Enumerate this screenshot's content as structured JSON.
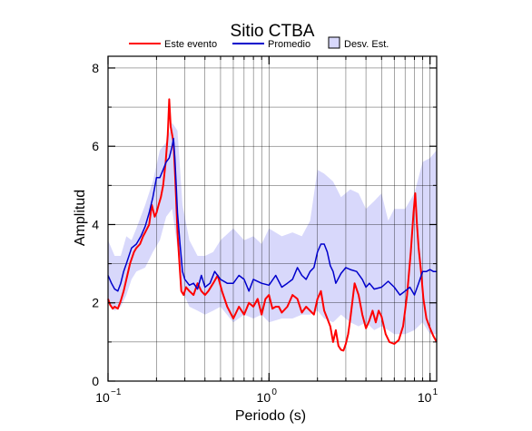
{
  "chart_data": {
    "type": "line",
    "title": "Sitio CTBA",
    "xlabel": "Periodo (s)",
    "ylabel": "Amplitud",
    "x_scale": "log",
    "xlim": [
      0.1,
      11
    ],
    "ylim": [
      0,
      8.3
    ],
    "grid": true,
    "legend_position": "top",
    "x_ticks": [
      {
        "value": 0.1,
        "base": "10",
        "exp": "−1"
      },
      {
        "value": 1,
        "base": "10",
        "exp": "0"
      },
      {
        "value": 10,
        "base": "10",
        "exp": "1"
      }
    ],
    "y_ticks": [
      0,
      2,
      4,
      6,
      8
    ],
    "legend": [
      {
        "label": "Este evento",
        "kind": "line",
        "color": "#ff0000"
      },
      {
        "label": "Promedio",
        "kind": "line",
        "color": "#0000cc"
      },
      {
        "label": "Desv. Est.",
        "kind": "band",
        "color": "#d8d8fb"
      }
    ],
    "series": [
      {
        "name": "Este evento",
        "color": "#ff0000",
        "x": [
          0.1,
          0.103,
          0.107,
          0.11,
          0.115,
          0.12,
          0.125,
          0.13,
          0.137,
          0.145,
          0.15,
          0.158,
          0.165,
          0.17,
          0.175,
          0.18,
          0.187,
          0.195,
          0.2,
          0.206,
          0.213,
          0.22,
          0.228,
          0.235,
          0.24,
          0.245,
          0.25,
          0.255,
          0.26,
          0.265,
          0.27,
          0.278,
          0.285,
          0.295,
          0.305,
          0.32,
          0.34,
          0.36,
          0.38,
          0.4,
          0.42,
          0.45,
          0.48,
          0.51,
          0.55,
          0.6,
          0.65,
          0.7,
          0.75,
          0.8,
          0.85,
          0.9,
          0.95,
          1.0,
          1.05,
          1.1,
          1.15,
          1.2,
          1.3,
          1.4,
          1.5,
          1.6,
          1.7,
          1.8,
          1.9,
          2.0,
          2.1,
          2.2,
          2.3,
          2.4,
          2.5,
          2.6,
          2.7,
          2.8,
          2.9,
          3.0,
          3.1,
          3.2,
          3.4,
          3.6,
          3.8,
          4.0,
          4.2,
          4.4,
          4.6,
          4.8,
          5.0,
          5.3,
          5.6,
          6.0,
          6.4,
          6.8,
          7.2,
          7.6,
          7.9,
          8.1,
          8.3,
          8.5,
          8.8,
          9.1,
          9.5,
          10.0,
          10.5,
          11.0
        ],
        "values": [
          2.1,
          1.95,
          1.85,
          1.9,
          1.85,
          2.05,
          2.3,
          2.6,
          3.0,
          3.3,
          3.4,
          3.5,
          3.7,
          3.8,
          3.9,
          4.0,
          4.5,
          4.2,
          4.3,
          4.5,
          4.7,
          5.0,
          5.6,
          6.3,
          7.2,
          6.5,
          6.3,
          6.1,
          5.4,
          4.6,
          3.8,
          3.0,
          2.3,
          2.2,
          2.4,
          2.3,
          2.2,
          2.5,
          2.3,
          2.2,
          2.3,
          2.5,
          2.7,
          2.3,
          1.9,
          1.6,
          1.9,
          1.7,
          2.0,
          1.9,
          2.1,
          1.7,
          2.1,
          2.2,
          1.85,
          1.9,
          1.9,
          1.75,
          1.9,
          2.2,
          2.1,
          1.75,
          1.9,
          1.8,
          1.7,
          2.1,
          2.3,
          1.8,
          1.6,
          1.4,
          1.0,
          1.3,
          0.9,
          0.8,
          0.78,
          0.95,
          1.2,
          1.6,
          2.5,
          2.2,
          1.7,
          1.35,
          1.55,
          1.8,
          1.5,
          1.8,
          1.65,
          1.2,
          1.0,
          0.95,
          1.05,
          1.4,
          2.2,
          3.3,
          4.3,
          4.8,
          4.0,
          3.4,
          2.8,
          2.1,
          1.6,
          1.35,
          1.15,
          1.0
        ]
      },
      {
        "name": "Promedio",
        "color": "#0000cc",
        "x": [
          0.1,
          0.105,
          0.11,
          0.115,
          0.12,
          0.125,
          0.13,
          0.14,
          0.15,
          0.16,
          0.17,
          0.18,
          0.19,
          0.2,
          0.21,
          0.22,
          0.23,
          0.24,
          0.25,
          0.255,
          0.26,
          0.265,
          0.27,
          0.28,
          0.29,
          0.3,
          0.32,
          0.34,
          0.36,
          0.38,
          0.4,
          0.43,
          0.46,
          0.5,
          0.55,
          0.6,
          0.65,
          0.7,
          0.75,
          0.8,
          0.9,
          1.0,
          1.1,
          1.2,
          1.3,
          1.4,
          1.5,
          1.6,
          1.7,
          1.8,
          1.9,
          2.0,
          2.1,
          2.2,
          2.3,
          2.4,
          2.5,
          2.6,
          2.8,
          3.0,
          3.2,
          3.5,
          3.8,
          4.0,
          4.2,
          4.5,
          5.0,
          5.5,
          6.0,
          6.5,
          7.0,
          7.5,
          8.0,
          8.5,
          9.0,
          9.5,
          10.0,
          10.5,
          11.0
        ],
        "values": [
          2.7,
          2.5,
          2.35,
          2.3,
          2.5,
          2.8,
          3.0,
          3.4,
          3.5,
          3.7,
          3.95,
          4.3,
          4.7,
          5.2,
          5.2,
          5.4,
          5.6,
          5.7,
          6.0,
          6.2,
          5.7,
          5.0,
          4.3,
          3.5,
          2.8,
          2.6,
          2.45,
          2.5,
          2.35,
          2.7,
          2.4,
          2.5,
          2.8,
          2.6,
          2.5,
          2.5,
          2.7,
          2.6,
          2.3,
          2.6,
          2.5,
          2.45,
          2.7,
          2.4,
          2.5,
          2.6,
          2.9,
          2.7,
          2.6,
          2.8,
          2.9,
          3.3,
          3.5,
          3.5,
          3.3,
          2.95,
          2.8,
          2.5,
          2.75,
          2.9,
          2.85,
          2.8,
          2.6,
          2.4,
          2.5,
          2.35,
          2.4,
          2.55,
          2.4,
          2.2,
          2.3,
          2.4,
          2.2,
          2.5,
          2.8,
          2.8,
          2.85,
          2.8,
          2.8
        ]
      }
    ],
    "band": {
      "name": "Desv. Est.",
      "color": "#d8d8fb",
      "x": [
        0.1,
        0.11,
        0.12,
        0.13,
        0.14,
        0.15,
        0.17,
        0.19,
        0.21,
        0.23,
        0.25,
        0.27,
        0.29,
        0.32,
        0.36,
        0.4,
        0.45,
        0.5,
        0.6,
        0.7,
        0.8,
        0.9,
        1.0,
        1.2,
        1.4,
        1.6,
        1.8,
        2.0,
        2.2,
        2.5,
        2.8,
        3.2,
        3.6,
        4.0,
        4.5,
        5.0,
        5.5,
        6.0,
        7.0,
        8.0,
        9.0,
        10.0,
        11.0
      ],
      "upper": [
        3.6,
        3.2,
        3.2,
        3.7,
        3.6,
        3.9,
        4.5,
        5.1,
        5.9,
        6.1,
        6.6,
        6.4,
        4.5,
        3.6,
        3.2,
        3.2,
        3.3,
        3.6,
        3.9,
        3.6,
        3.7,
        3.5,
        3.9,
        3.7,
        3.8,
        3.7,
        4.1,
        5.4,
        5.3,
        5.1,
        4.7,
        4.9,
        4.8,
        4.4,
        4.6,
        4.8,
        4.1,
        4.4,
        4.4,
        4.8,
        5.6,
        5.7,
        5.9
      ],
      "lower": [
        2.0,
        1.8,
        1.9,
        2.2,
        2.6,
        2.8,
        2.9,
        3.3,
        3.6,
        4.2,
        4.4,
        3.4,
        2.3,
        1.9,
        1.8,
        1.7,
        1.8,
        1.9,
        1.5,
        1.7,
        1.6,
        1.7,
        1.5,
        1.6,
        1.6,
        1.7,
        1.7,
        1.8,
        1.6,
        1.5,
        1.7,
        1.5,
        1.4,
        1.5,
        1.3,
        1.4,
        1.3,
        1.2,
        1.2,
        1.3,
        1.5,
        1.2,
        1.2
      ]
    }
  }
}
